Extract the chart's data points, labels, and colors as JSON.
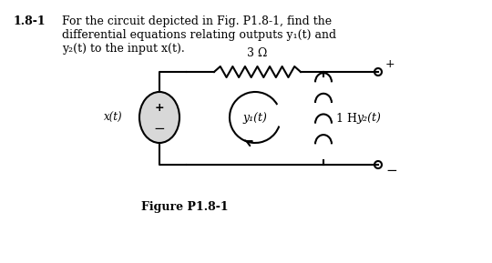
{
  "title_number": "1.8-1",
  "title_text": "For the circuit depicted in Fig. P1.8-1, find the\ndifferential equations relating outputs y₁(t) and\ny₂(t) to the input x(t).",
  "figure_label": "Figure P1.8-1",
  "resistor_label": "3 Ω",
  "inductor_label": "1 H",
  "y1_label": "y₁(t)",
  "y2_label": "y₂(t)",
  "x_label": "x(t)",
  "bg_color": "#ffffff",
  "line_color": "#000000"
}
